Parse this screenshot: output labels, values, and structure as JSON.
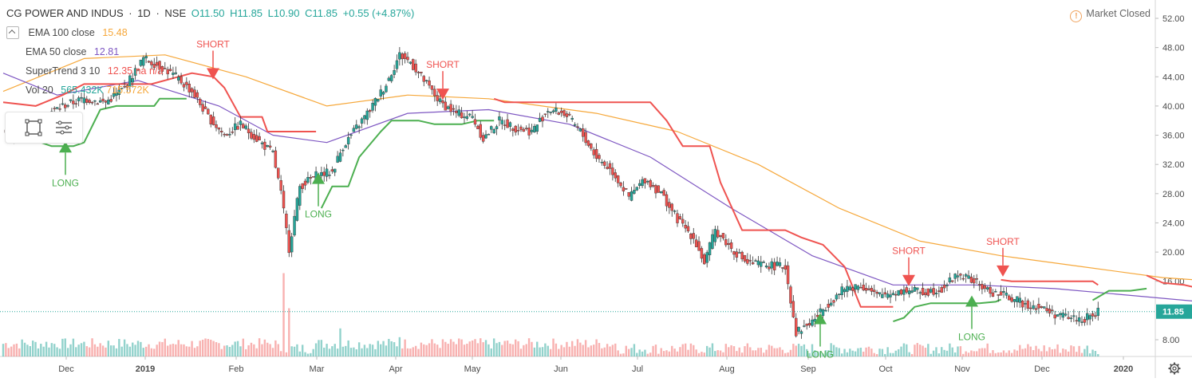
{
  "header": {
    "symbol": "CG POWER AND INDUS",
    "interval": "1D",
    "exchange": "NSE",
    "open": "O11.50",
    "high": "H11.85",
    "low": "L10.90",
    "close": "C11.85",
    "change": "+0.55 (+4.87%)"
  },
  "indicators": [
    {
      "name": "EMA 100 close",
      "value": "15.48",
      "color": "#f6a83b"
    },
    {
      "name": "EMA 50 close",
      "value": "12.81",
      "color": "#7e57c2"
    },
    {
      "name": "SuperTrend 3 10",
      "value": "12.35",
      "value2": "na",
      "value3": "n/a",
      "color": "#ef5350"
    },
    {
      "name": "Vol 20",
      "value": "565.432K",
      "value2": "715.572K",
      "color": "#26a69a",
      "color2": "#f6a83b"
    }
  ],
  "market_status": "Market Closed",
  "icons": {
    "collapse": "chevron-up-icon",
    "market": "alert-circle-icon",
    "rect_tool": "rectangle-select-icon",
    "lines_tool": "lines-menu-icon",
    "settings": "gear-icon"
  },
  "colors": {
    "up": "#26a69a",
    "down": "#ef5350",
    "supertrend_up": "#4caf50",
    "supertrend_down": "#ef5350",
    "ema100": "#f6a83b",
    "ema50": "#7e57c2",
    "last_price_bg": "#26a69a"
  },
  "chart_data": {
    "type": "candlestick",
    "y_axis": {
      "ticks": [
        "52.00",
        "48.00",
        "44.00",
        "40.00",
        "36.00",
        "32.00",
        "28.00",
        "24.00",
        "20.00",
        "16.00",
        "11.85",
        "8.00"
      ],
      "last_price": 11.85,
      "ylim": [
        6.0,
        53.5
      ]
    },
    "x_axis": {
      "labels": [
        "Dec",
        "2019",
        "Feb",
        "Mar",
        "Apr",
        "May",
        "Jun",
        "Jul",
        "Aug",
        "Sep",
        "Oct",
        "Nov",
        "Dec",
        "2020"
      ]
    },
    "signals": [
      {
        "label": "LONG",
        "type": "buy",
        "date": "2018-12-14",
        "price": 34.5
      },
      {
        "label": "SHORT",
        "type": "sell",
        "date": "2019-01-25",
        "price": 44.3
      },
      {
        "label": "LONG",
        "type": "buy",
        "date": "2019-02-28",
        "price": 30.2
      },
      {
        "label": "SHORT",
        "type": "sell",
        "date": "2019-04-22",
        "price": 41.5
      },
      {
        "label": "LONG",
        "type": "buy",
        "date": "2019-09-03",
        "price": 11.0
      },
      {
        "label": "SHORT",
        "type": "sell",
        "date": "2019-10-14",
        "price": 16.0
      },
      {
        "label": "LONG",
        "type": "buy",
        "date": "2019-11-07",
        "price": 13.4
      },
      {
        "label": "SHORT",
        "type": "sell",
        "date": "2019-11-20",
        "price": 17.3
      }
    ],
    "close_path": [
      [
        0,
        36.5
      ],
      [
        6,
        36.0
      ],
      [
        14,
        38.5
      ],
      [
        22,
        40.0
      ],
      [
        30,
        41.0
      ],
      [
        38,
        40.5
      ],
      [
        45,
        42.5
      ],
      [
        52,
        46.5
      ],
      [
        58,
        45.5
      ],
      [
        64,
        44.0
      ],
      [
        70,
        42.0
      ],
      [
        76,
        38.5
      ],
      [
        82,
        36.0
      ],
      [
        88,
        37.5
      ],
      [
        94,
        35.5
      ],
      [
        100,
        33.5
      ],
      [
        103,
        28.0
      ],
      [
        106,
        20.5
      ],
      [
        110,
        29.0
      ],
      [
        116,
        30.5
      ],
      [
        122,
        31.0
      ],
      [
        126,
        34.5
      ],
      [
        130,
        36.5
      ],
      [
        136,
        39.5
      ],
      [
        142,
        43.0
      ],
      [
        147,
        47.0
      ],
      [
        151,
        46.0
      ],
      [
        156,
        43.5
      ],
      [
        162,
        40.5
      ],
      [
        168,
        39.0
      ],
      [
        174,
        38.5
      ],
      [
        178,
        35.5
      ],
      [
        184,
        38.0
      ],
      [
        190,
        37.0
      ],
      [
        196,
        36.5
      ],
      [
        202,
        39.5
      ],
      [
        208,
        39.0
      ],
      [
        214,
        36.5
      ],
      [
        220,
        33.0
      ],
      [
        226,
        31.0
      ],
      [
        232,
        27.5
      ],
      [
        238,
        30.0
      ],
      [
        244,
        28.0
      ],
      [
        250,
        24.5
      ],
      [
        256,
        22.0
      ],
      [
        260,
        18.5
      ],
      [
        264,
        23.0
      ],
      [
        270,
        20.5
      ],
      [
        276,
        18.5
      ],
      [
        284,
        18.2
      ],
      [
        290,
        18.0
      ],
      [
        294,
        9.0
      ],
      [
        300,
        10.5
      ],
      [
        306,
        13.0
      ],
      [
        312,
        15.0
      ],
      [
        318,
        15.5
      ],
      [
        324,
        14.0
      ],
      [
        330,
        14.5
      ],
      [
        336,
        14.8
      ],
      [
        342,
        14.5
      ],
      [
        348,
        15.0
      ],
      [
        354,
        17.0
      ],
      [
        360,
        16.0
      ],
      [
        366,
        14.5
      ],
      [
        372,
        14.0
      ],
      [
        378,
        13.0
      ],
      [
        384,
        12.5
      ],
      [
        390,
        11.5
      ],
      [
        396,
        11.0
      ],
      [
        400,
        10.8
      ],
      [
        404,
        11.2
      ],
      [
        406,
        11.85
      ]
    ],
    "supertrend_segments": [
      {
        "dir": "down",
        "points": [
          [
            0,
            40.5
          ],
          [
            12,
            40.0
          ],
          [
            22,
            41.5
          ],
          [
            30,
            43.0
          ],
          [
            45,
            43.0
          ],
          [
            55,
            43.0
          ],
          [
            70,
            44.5
          ],
          [
            78,
            44.0
          ],
          [
            82,
            42.5
          ],
          [
            88,
            38.5
          ],
          [
            96,
            38.5
          ],
          [
            98,
            36.5
          ],
          [
            112,
            36.5
          ],
          [
            116,
            36.5
          ]
        ]
      },
      {
        "dir": "up",
        "points": [
          [
            14,
            35.0
          ],
          [
            18,
            34.5
          ],
          [
            26,
            34.5
          ],
          [
            30,
            35.0
          ],
          [
            36,
            39.5
          ],
          [
            42,
            40.0
          ],
          [
            56,
            40.0
          ],
          [
            58,
            41.0
          ],
          [
            68,
            41.0
          ]
        ]
      },
      {
        "dir": "up",
        "points": [
          [
            118,
            26.0
          ],
          [
            122,
            29.0
          ],
          [
            128,
            29.0
          ],
          [
            132,
            33.0
          ],
          [
            140,
            36.5
          ],
          [
            144,
            38.0
          ],
          [
            154,
            38.0
          ],
          [
            160,
            37.5
          ],
          [
            170,
            37.5
          ],
          [
            176,
            38.0
          ],
          [
            182,
            38.0
          ]
        ]
      },
      {
        "dir": "down",
        "points": [
          [
            182,
            41.0
          ],
          [
            186,
            40.5
          ],
          [
            240,
            40.5
          ],
          [
            246,
            38.0
          ],
          [
            252,
            34.5
          ],
          [
            262,
            34.5
          ],
          [
            266,
            29.5
          ],
          [
            274,
            23.0
          ],
          [
            290,
            23.0
          ],
          [
            296,
            22.0
          ],
          [
            304,
            21.0
          ],
          [
            312,
            18.0
          ],
          [
            318,
            12.5
          ],
          [
            330,
            12.5
          ]
        ]
      },
      {
        "dir": "up",
        "points": [
          [
            330,
            10.5
          ],
          [
            334,
            11.0
          ],
          [
            338,
            12.5
          ],
          [
            344,
            13.0
          ],
          [
            362,
            13.0
          ],
          [
            368,
            13.2
          ],
          [
            370,
            13.5
          ]
        ]
      },
      {
        "dir": "down",
        "points": [
          [
            370,
            16.2
          ],
          [
            374,
            16.0
          ],
          [
            396,
            16.0
          ],
          [
            404,
            16.0
          ],
          [
            406,
            15.5
          ]
        ]
      },
      {
        "dir": "up",
        "points": [
          [
            404,
            13.4
          ],
          [
            410,
            14.7
          ],
          [
            418,
            14.7
          ],
          [
            424,
            15.0
          ]
        ]
      },
      {
        "dir": "down",
        "points": [
          [
            424,
            16.8
          ],
          [
            430,
            15.8
          ],
          [
            438,
            15.5
          ],
          [
            444,
            15.0
          ],
          [
            450,
            14.0
          ],
          [
            456,
            12.5
          ],
          [
            470,
            12.35
          ]
        ]
      }
    ],
    "ema100": [
      [
        0,
        42.0
      ],
      [
        30,
        46.5
      ],
      [
        60,
        47.0
      ],
      [
        90,
        44.0
      ],
      [
        120,
        40.0
      ],
      [
        150,
        41.5
      ],
      [
        180,
        41.0
      ],
      [
        220,
        39.0
      ],
      [
        250,
        36.5
      ],
      [
        280,
        32.0
      ],
      [
        310,
        26.0
      ],
      [
        340,
        21.5
      ],
      [
        370,
        19.5
      ],
      [
        400,
        18.0
      ],
      [
        430,
        16.5
      ],
      [
        470,
        15.48
      ]
    ],
    "ema50": [
      [
        0,
        44.5
      ],
      [
        20,
        41.5
      ],
      [
        50,
        43.5
      ],
      [
        80,
        40.0
      ],
      [
        100,
        36.0
      ],
      [
        120,
        35.0
      ],
      [
        150,
        39.0
      ],
      [
        180,
        39.5
      ],
      [
        210,
        37.5
      ],
      [
        240,
        33.0
      ],
      [
        270,
        26.0
      ],
      [
        300,
        19.5
      ],
      [
        330,
        15.5
      ],
      [
        360,
        15.5
      ],
      [
        390,
        15.0
      ],
      [
        420,
        14.0
      ],
      [
        450,
        13.0
      ],
      [
        470,
        12.81
      ]
    ],
    "volume_spikes": [
      [
        104,
        0.95
      ],
      [
        106,
        0.55
      ],
      [
        125,
        0.32
      ],
      [
        147,
        0.22
      ],
      [
        296,
        0.12
      ],
      [
        360,
        0.06
      ]
    ]
  }
}
